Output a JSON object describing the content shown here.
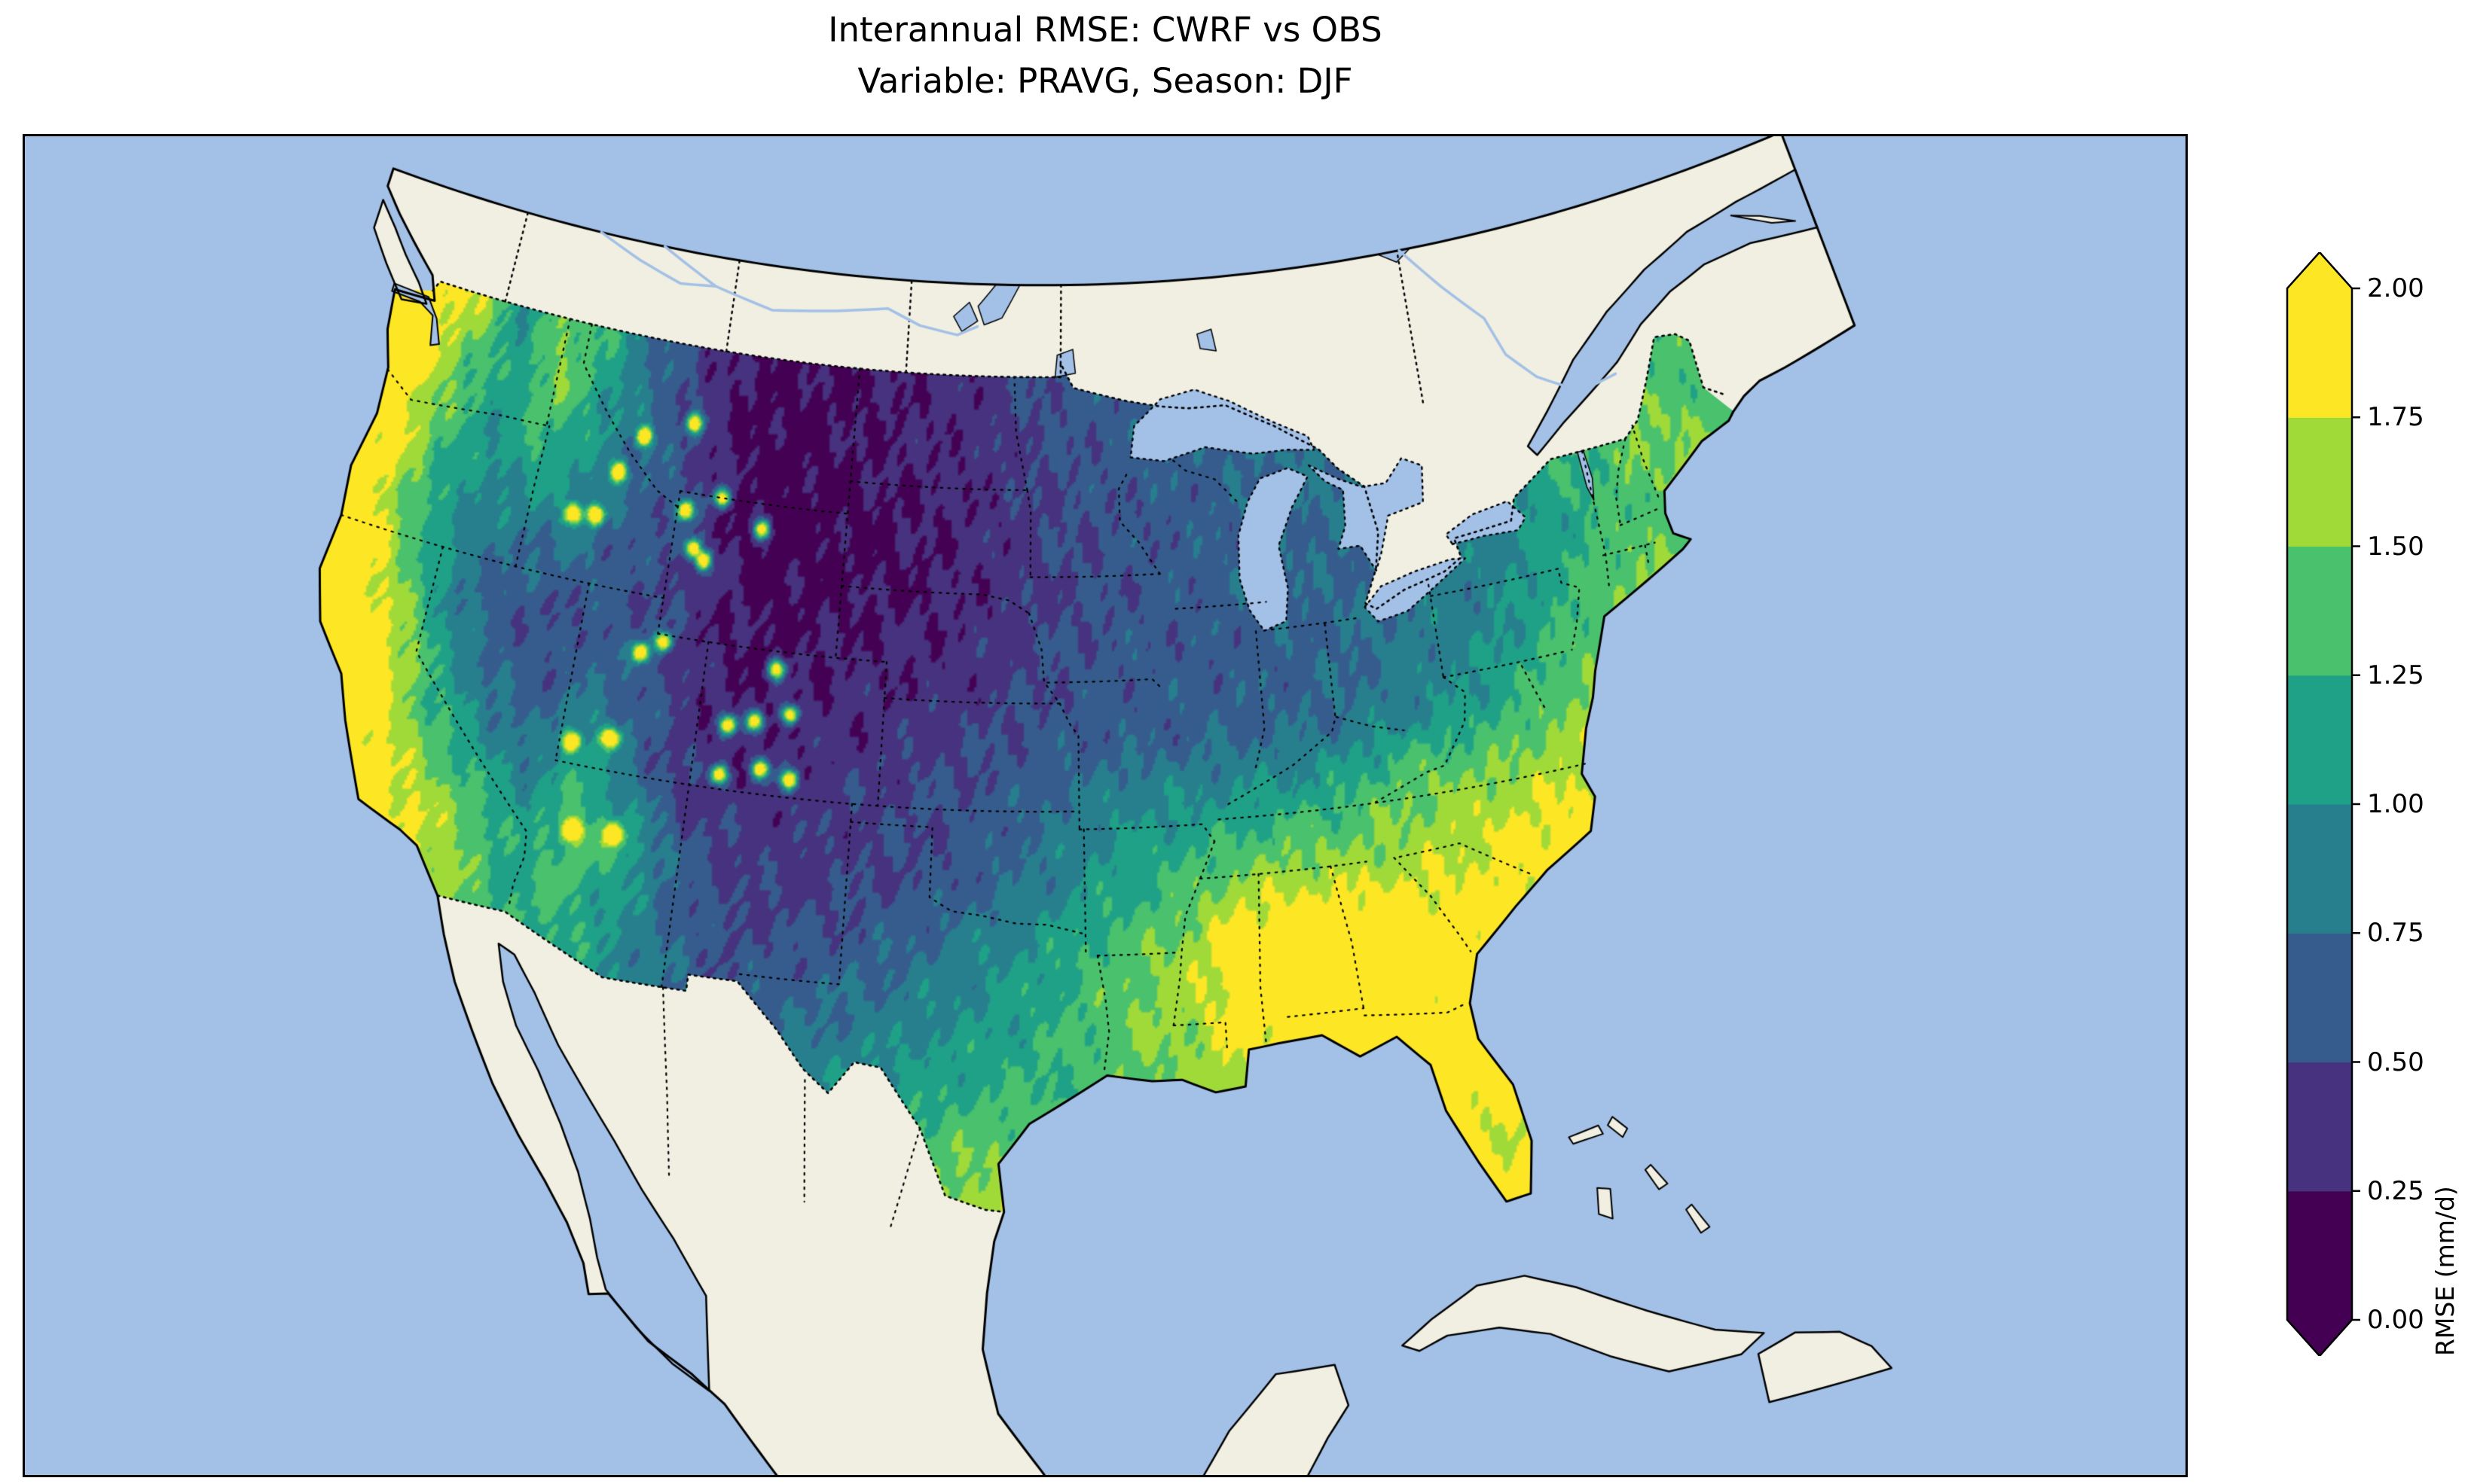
{
  "figure": {
    "title_line1": "Interannual RMSE: CWRF vs OBS",
    "title_line2": "Variable: PRAVG, Season: DJF"
  },
  "colorbar": {
    "label": "RMSE (mm/d)",
    "tick_labels": [
      "2.00",
      "1.75",
      "1.50",
      "1.25",
      "1.00",
      "0.75",
      "0.50",
      "0.25",
      "0.00"
    ],
    "band_colors_low_to_high": [
      "#440154",
      "#46327e",
      "#365c8d",
      "#277f8e",
      "#1fa187",
      "#4ac16d",
      "#a0da39",
      "#fde725"
    ],
    "under_color": "#440154",
    "over_color": "#fde725"
  },
  "map": {
    "ocean_color": "#a3c0e6",
    "land_color": "#f0efe2",
    "lake_color": "#a3c0e6",
    "coast_color": "#000000"
  },
  "chart_data": {
    "type": "heatmap",
    "title": "Interannual RMSE: CWRF vs OBS",
    "subtitle": "Variable: PRAVG, Season: DJF",
    "metric": "Interannual RMSE",
    "comparison": "CWRF vs OBS",
    "variable": "PRAVG",
    "season": "DJF",
    "region": "Contiguous United States",
    "colorbar_label": "RMSE (mm/d)",
    "units": "mm/d",
    "colormap": "viridis",
    "extend": "both",
    "levels": [
      0.0,
      0.25,
      0.5,
      0.75,
      1.0,
      1.25,
      1.5,
      1.75,
      2.0
    ],
    "grid": {
      "lon": [
        -125,
        -123,
        -121,
        -119,
        -117,
        -115,
        -113,
        -111,
        -109,
        -107,
        -105,
        -103,
        -101,
        -99,
        -97,
        -95,
        -93,
        -91,
        -89,
        -87,
        -85,
        -83,
        -81,
        -79,
        -77,
        -75,
        -73,
        -71,
        -69,
        -67
      ],
      "lat_descending": [
        49,
        47,
        45,
        43,
        41,
        39,
        37,
        35,
        33,
        31,
        29,
        27,
        25
      ],
      "values": [
        [
          2.2,
          2.0,
          1.7,
          1.0,
          1.5,
          1.2,
          0.7,
          0.4,
          0.25,
          0.2,
          0.2,
          0.25,
          0.3,
          0.35,
          0.5,
          0.6,
          0.65,
          0.7,
          0.75,
          0.8,
          0.85,
          0.9,
          0.9,
          0.95,
          1.0,
          1.05,
          1.1,
          1.2,
          1.1,
          1.2
        ],
        [
          2.2,
          1.9,
          1.4,
          1.1,
          1.5,
          1.1,
          0.8,
          0.5,
          0.2,
          0.15,
          0.2,
          0.25,
          0.3,
          0.35,
          0.45,
          0.55,
          0.6,
          0.7,
          0.7,
          0.75,
          0.8,
          0.85,
          0.9,
          0.95,
          1.0,
          1.1,
          1.2,
          1.3,
          1.3,
          1.4
        ],
        [
          2.1,
          1.9,
          1.3,
          1.0,
          1.2,
          1.0,
          0.7,
          0.6,
          0.25,
          0.15,
          0.15,
          0.2,
          0.25,
          0.3,
          0.4,
          0.5,
          0.55,
          0.6,
          0.65,
          0.7,
          0.75,
          0.8,
          0.85,
          0.9,
          1.0,
          1.2,
          1.3,
          1.5,
          1.5,
          1.3
        ],
        [
          2.0,
          1.8,
          1.2,
          0.9,
          0.8,
          0.8,
          0.6,
          0.5,
          0.3,
          0.15,
          0.2,
          0.2,
          0.25,
          0.3,
          0.4,
          0.5,
          0.55,
          0.6,
          0.65,
          0.7,
          0.7,
          0.75,
          0.8,
          0.85,
          0.95,
          1.1,
          1.3,
          1.4,
          1.6,
          1.5
        ],
        [
          2.1,
          2.0,
          1.4,
          0.8,
          0.6,
          0.5,
          0.6,
          0.5,
          0.3,
          0.2,
          0.25,
          0.3,
          0.3,
          0.35,
          0.45,
          0.55,
          0.6,
          0.6,
          0.6,
          0.65,
          0.7,
          0.75,
          0.85,
          0.9,
          1.05,
          1.3,
          1.5,
          1.5,
          1.6,
          1.6
        ],
        [
          2.2,
          2.1,
          1.8,
          1.1,
          0.7,
          0.6,
          0.8,
          0.6,
          0.35,
          0.3,
          0.3,
          0.35,
          0.4,
          0.45,
          0.55,
          0.6,
          0.65,
          0.65,
          0.7,
          0.7,
          0.75,
          0.85,
          0.95,
          1.1,
          1.3,
          1.5,
          1.6,
          1.6,
          1.6,
          1.6
        ],
        [
          2.1,
          2.1,
          1.9,
          1.4,
          1.0,
          0.8,
          1.2,
          0.7,
          0.4,
          0.35,
          0.4,
          0.45,
          0.5,
          0.55,
          0.65,
          0.8,
          0.95,
          1.0,
          1.05,
          1.1,
          1.2,
          1.4,
          1.5,
          1.5,
          1.6,
          1.7,
          1.7,
          1.7,
          1.7,
          1.7
        ],
        [
          2.0,
          2.0,
          2.0,
          1.8,
          1.5,
          1.1,
          1.4,
          1.2,
          0.6,
          0.45,
          0.4,
          0.45,
          0.5,
          0.6,
          0.75,
          0.95,
          1.15,
          1.3,
          1.5,
          1.6,
          1.6,
          1.6,
          1.7,
          1.8,
          1.9,
          1.9,
          1.9,
          1.9,
          1.9,
          1.9
        ],
        [
          2.0,
          1.9,
          1.9,
          1.9,
          1.6,
          1.2,
          1.3,
          1.0,
          0.7,
          0.5,
          0.55,
          0.6,
          0.7,
          0.85,
          1.0,
          1.2,
          1.4,
          1.6,
          2.0,
          2.1,
          2.1,
          2.0,
          1.9,
          1.9,
          1.9,
          1.9,
          1.9,
          1.9,
          1.9,
          1.9
        ],
        [
          1.9,
          1.9,
          1.8,
          1.7,
          1.5,
          1.3,
          1.2,
          1.0,
          0.8,
          0.6,
          0.7,
          0.8,
          0.9,
          1.0,
          1.1,
          1.3,
          1.5,
          1.6,
          1.9,
          2.0,
          2.0,
          1.9,
          1.9,
          1.9,
          1.9,
          1.9,
          1.9,
          1.9,
          1.9,
          1.9
        ],
        [
          1.8,
          1.8,
          1.8,
          1.7,
          1.5,
          1.3,
          1.2,
          1.0,
          0.9,
          0.8,
          0.9,
          1.0,
          1.1,
          1.2,
          1.3,
          1.3,
          1.4,
          1.5,
          1.7,
          1.8,
          1.9,
          2.0,
          2.0,
          1.9,
          1.9,
          1.9,
          1.9,
          1.9,
          1.9,
          1.9
        ],
        [
          1.7,
          1.7,
          1.7,
          1.7,
          1.7,
          1.7,
          1.7,
          1.7,
          1.7,
          1.7,
          1.7,
          1.7,
          1.5,
          1.5,
          1.6,
          1.7,
          1.7,
          1.7,
          1.7,
          1.7,
          1.8,
          1.9,
          1.7,
          2.0,
          1.9,
          1.9,
          1.9,
          1.9,
          1.9,
          1.9
        ],
        [
          1.8,
          1.8,
          1.8,
          1.8,
          1.8,
          1.8,
          1.8,
          1.8,
          1.8,
          1.8,
          1.8,
          1.8,
          1.8,
          1.8,
          1.8,
          1.8,
          1.8,
          1.8,
          1.8,
          1.8,
          1.8,
          1.9,
          2.0,
          2.1,
          1.9,
          1.9,
          1.9,
          1.9,
          1.9,
          1.9
        ]
      ]
    },
    "hotspots_high_rmse": [
      [
        -110.7,
        44.5
      ],
      [
        -109.7,
        43.2
      ],
      [
        -107.5,
        44.3
      ],
      [
        -110.8,
        40.8
      ],
      [
        -111.6,
        40.4
      ],
      [
        -106.3,
        40.5
      ],
      [
        -105.6,
        39.3
      ],
      [
        -106.9,
        39.0
      ],
      [
        -107.9,
        38.8
      ],
      [
        -105.4,
        37.5
      ],
      [
        -106.5,
        37.7
      ],
      [
        -108.0,
        37.4
      ],
      [
        -113.6,
        37.6
      ],
      [
        -112.2,
        37.9
      ],
      [
        -113.0,
        35.2
      ],
      [
        -111.5,
        35.3
      ],
      [
        -115.2,
        43.8
      ],
      [
        -114.3,
        43.9
      ],
      [
        -113.7,
        45.2
      ],
      [
        -110.9,
        46.9
      ],
      [
        -112.9,
        46.3
      ],
      [
        -109.3,
        45.0
      ],
      [
        -110.2,
        43.5
      ]
    ]
  }
}
